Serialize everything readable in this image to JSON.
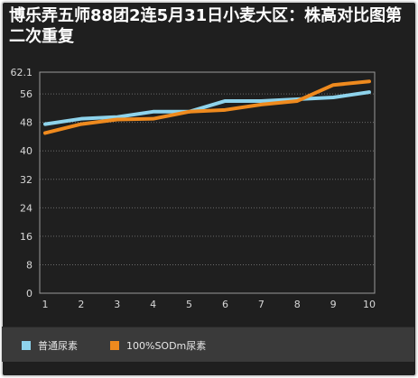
{
  "title": "博乐弄五师88团2连5月31日小麦大区：株高对比图第二次重复",
  "colors": {
    "background": "#1f1f1f",
    "plot_border": "#9a9a9a",
    "grid": "#6a6a6a",
    "tick_text": "#d8d8d8"
  },
  "chart_data": {
    "type": "line",
    "title": "博乐弄五师88团2连5月31日小麦大区：株高对比图第二次重复",
    "xlabel": "",
    "ylabel": "",
    "x": [
      1,
      2,
      3,
      4,
      5,
      6,
      7,
      8,
      9,
      10
    ],
    "x_tick_labels": [
      "1",
      "2",
      "3",
      "4",
      "5",
      "6",
      "7",
      "8",
      "9",
      "10"
    ],
    "ylim": [
      0,
      62.1
    ],
    "y_ticks": [
      0,
      8,
      16,
      24,
      32,
      40,
      48,
      56,
      62.1
    ],
    "y_tick_labels": [
      "0",
      "8",
      "16",
      "24",
      "32",
      "40",
      "48",
      "56",
      "62.1"
    ],
    "grid": true,
    "legend_position": "bottom",
    "series": [
      {
        "name": "普通尿素",
        "color": "#8ed3ec",
        "values": [
          47.5,
          49.0,
          49.5,
          51.0,
          51.0,
          54.0,
          54.0,
          54.5,
          55.0,
          56.5
        ]
      },
      {
        "name": "100%SODm尿素",
        "color": "#ef8a1e",
        "values": [
          45.0,
          47.5,
          48.8,
          49.0,
          51.0,
          51.5,
          53.0,
          54.0,
          58.5,
          59.5
        ]
      }
    ]
  }
}
